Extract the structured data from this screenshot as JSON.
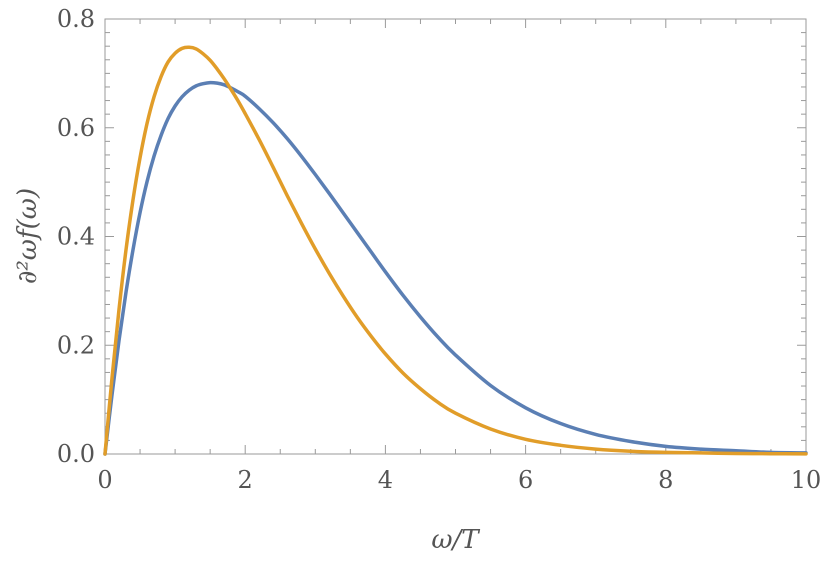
{
  "chart_data": {
    "type": "line",
    "title": "",
    "xlabel": "ω/T",
    "ylabel": "∂²ωf(ω)",
    "xlim": [
      0,
      10
    ],
    "ylim": [
      0,
      0.8
    ],
    "grid": false,
    "x_ticks": [
      0,
      2,
      4,
      6,
      8,
      10
    ],
    "x_tick_labels": [
      "0",
      "2",
      "4",
      "6",
      "8",
      "10"
    ],
    "y_ticks": [
      0.0,
      0.2,
      0.4,
      0.6,
      0.8
    ],
    "y_tick_labels": [
      "0.0",
      "0.2",
      "0.4",
      "0.6",
      "0.8"
    ],
    "series": [
      {
        "color": "#5b7fb4",
        "x": [
          0,
          0.1,
          0.2,
          0.3,
          0.4,
          0.5,
          0.6,
          0.7,
          0.8,
          0.9,
          1.0,
          1.1,
          1.2,
          1.3,
          1.4,
          1.5,
          1.6,
          1.7,
          1.8,
          1.9,
          2.0,
          2.2,
          2.4,
          2.6,
          2.8,
          3.0,
          3.2,
          3.4,
          3.6,
          3.8,
          4.0,
          4.25,
          4.5,
          4.75,
          5.0,
          5.5,
          6.0,
          6.5,
          7.0,
          7.5,
          8.0,
          8.5,
          9.0,
          9.5,
          10.0
        ],
        "y": [
          0.0,
          0.109,
          0.209,
          0.298,
          0.376,
          0.444,
          0.501,
          0.548,
          0.586,
          0.617,
          0.64,
          0.657,
          0.669,
          0.677,
          0.681,
          0.683,
          0.682,
          0.679,
          0.673,
          0.666,
          0.658,
          0.635,
          0.609,
          0.58,
          0.548,
          0.514,
          0.479,
          0.443,
          0.407,
          0.371,
          0.335,
          0.292,
          0.252,
          0.215,
          0.182,
          0.126,
          0.085,
          0.056,
          0.036,
          0.023,
          0.014,
          0.009,
          0.006,
          0.003,
          0.002
        ]
      },
      {
        "color": "#e19d29",
        "x": [
          0,
          0.1,
          0.2,
          0.3,
          0.4,
          0.5,
          0.6,
          0.7,
          0.8,
          0.9,
          1.0,
          1.1,
          1.2,
          1.3,
          1.4,
          1.5,
          1.6,
          1.7,
          1.8,
          1.9,
          2.0,
          2.2,
          2.4,
          2.6,
          2.8,
          3.0,
          3.2,
          3.4,
          3.6,
          3.8,
          4.0,
          4.25,
          4.5,
          4.75,
          5.0,
          5.5,
          6.0,
          6.5,
          7.0,
          7.5,
          8.0,
          8.5,
          9.0,
          9.5,
          10.0
        ],
        "y": [
          0.0,
          0.14,
          0.266,
          0.376,
          0.468,
          0.545,
          0.608,
          0.657,
          0.694,
          0.721,
          0.737,
          0.746,
          0.748,
          0.745,
          0.736,
          0.724,
          0.708,
          0.69,
          0.67,
          0.649,
          0.626,
          0.578,
          0.527,
          0.475,
          0.425,
          0.377,
          0.332,
          0.29,
          0.251,
          0.216,
          0.184,
          0.149,
          0.12,
          0.095,
          0.075,
          0.046,
          0.027,
          0.016,
          0.009,
          0.005,
          0.003,
          0.002,
          0.001,
          0.0005,
          0.0003
        ]
      }
    ]
  }
}
